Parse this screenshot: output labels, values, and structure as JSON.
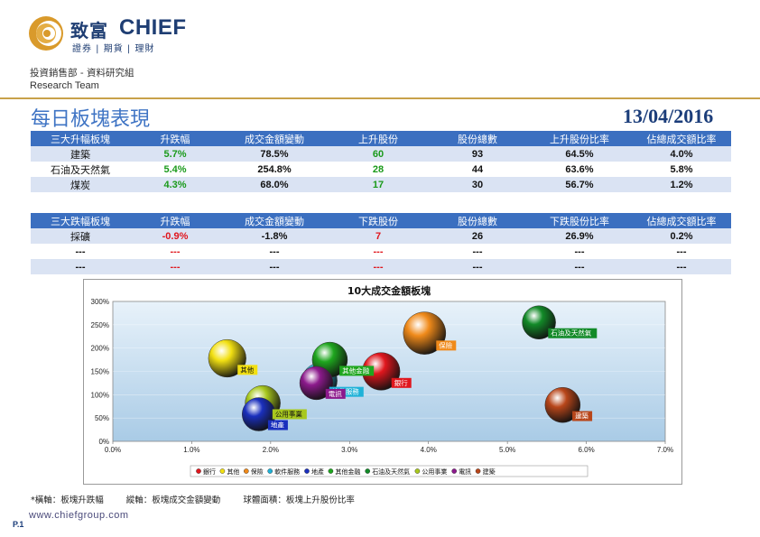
{
  "header": {
    "logo_cn": "致富",
    "logo_en": "CHIEF",
    "logo_sub": "證券 | 期貨 | 理財",
    "department": "投資銷售部 - 資料研究組",
    "team": "Research Team"
  },
  "title": "每日板塊表現",
  "date": "13/04/2016",
  "top_table": {
    "headers": [
      "三大升幅板塊",
      "升跌幅",
      "成交金額變動",
      "上升股份",
      "股份總數",
      "上升股份比率",
      "佔總成交額比率"
    ],
    "rows": [
      [
        "建築",
        "5.7%",
        "78.5%",
        "60",
        "93",
        "64.5%",
        "4.0%"
      ],
      [
        "石油及天然氣",
        "5.4%",
        "254.8%",
        "28",
        "44",
        "63.6%",
        "5.8%"
      ],
      [
        "煤炭",
        "4.3%",
        "68.0%",
        "17",
        "30",
        "56.7%",
        "1.2%"
      ]
    ]
  },
  "bottom_table": {
    "headers": [
      "三大跌幅板塊",
      "升跌幅",
      "成交金額變動",
      "下跌股份",
      "股份總數",
      "下跌股份比率",
      "佔總成交額比率"
    ],
    "rows": [
      [
        "採礦",
        "-0.9%",
        "-1.8%",
        "7",
        "26",
        "26.9%",
        "0.2%"
      ],
      [
        "---",
        "---",
        "---",
        "---",
        "---",
        "---",
        "---"
      ],
      [
        "---",
        "---",
        "---",
        "---",
        "---",
        "---",
        "---"
      ]
    ]
  },
  "chart_data": {
    "type": "bubble",
    "title": "10大成交金額板塊",
    "xlim": [
      0,
      7
    ],
    "ylim": [
      0,
      300
    ],
    "x_ticks": [
      "0.0%",
      "1.0%",
      "2.0%",
      "3.0%",
      "4.0%",
      "5.0%",
      "6.0%",
      "7.0%"
    ],
    "y_ticks": [
      "0%",
      "50%",
      "100%",
      "150%",
      "200%",
      "250%",
      "300%"
    ],
    "legend_position": "bottom",
    "series": [
      {
        "name": "銀行",
        "x": 3.4,
        "y": 150,
        "size": 0.62,
        "color": "#e0161d"
      },
      {
        "name": "其他",
        "x": 1.45,
        "y": 178,
        "size": 0.62,
        "color": "#f2e012"
      },
      {
        "name": "保險",
        "x": 3.95,
        "y": 232,
        "size": 0.7,
        "color": "#f08a1a"
      },
      {
        "name": "軟件服務",
        "x": 2.62,
        "y": 130,
        "size": 0.58,
        "color": "#1fb2d8"
      },
      {
        "name": "地產",
        "x": 1.85,
        "y": 58,
        "size": 0.55,
        "color": "#1a2fbd"
      },
      {
        "name": "其他金融",
        "x": 2.75,
        "y": 175,
        "size": 0.58,
        "color": "#1ea61e"
      },
      {
        "name": "石油及天然氣",
        "x": 5.4,
        "y": 255,
        "size": 0.55,
        "color": "#128a28"
      },
      {
        "name": "公用事業",
        "x": 1.9,
        "y": 82,
        "size": 0.58,
        "color": "#a8c81e"
      },
      {
        "name": "電訊",
        "x": 2.58,
        "y": 125,
        "size": 0.55,
        "color": "#8c1a8c"
      },
      {
        "name": "建築",
        "x": 5.7,
        "y": 78,
        "size": 0.58,
        "color": "#b8461a"
      }
    ]
  },
  "footnote": {
    "x_axis": "*橫軸：板塊升跌幅",
    "y_axis": "縱軸：板塊成交金額變動",
    "bubble": "球體面積：板塊上升股份比率"
  },
  "website": "www.chiefgroup.com",
  "page_label": "P.1"
}
